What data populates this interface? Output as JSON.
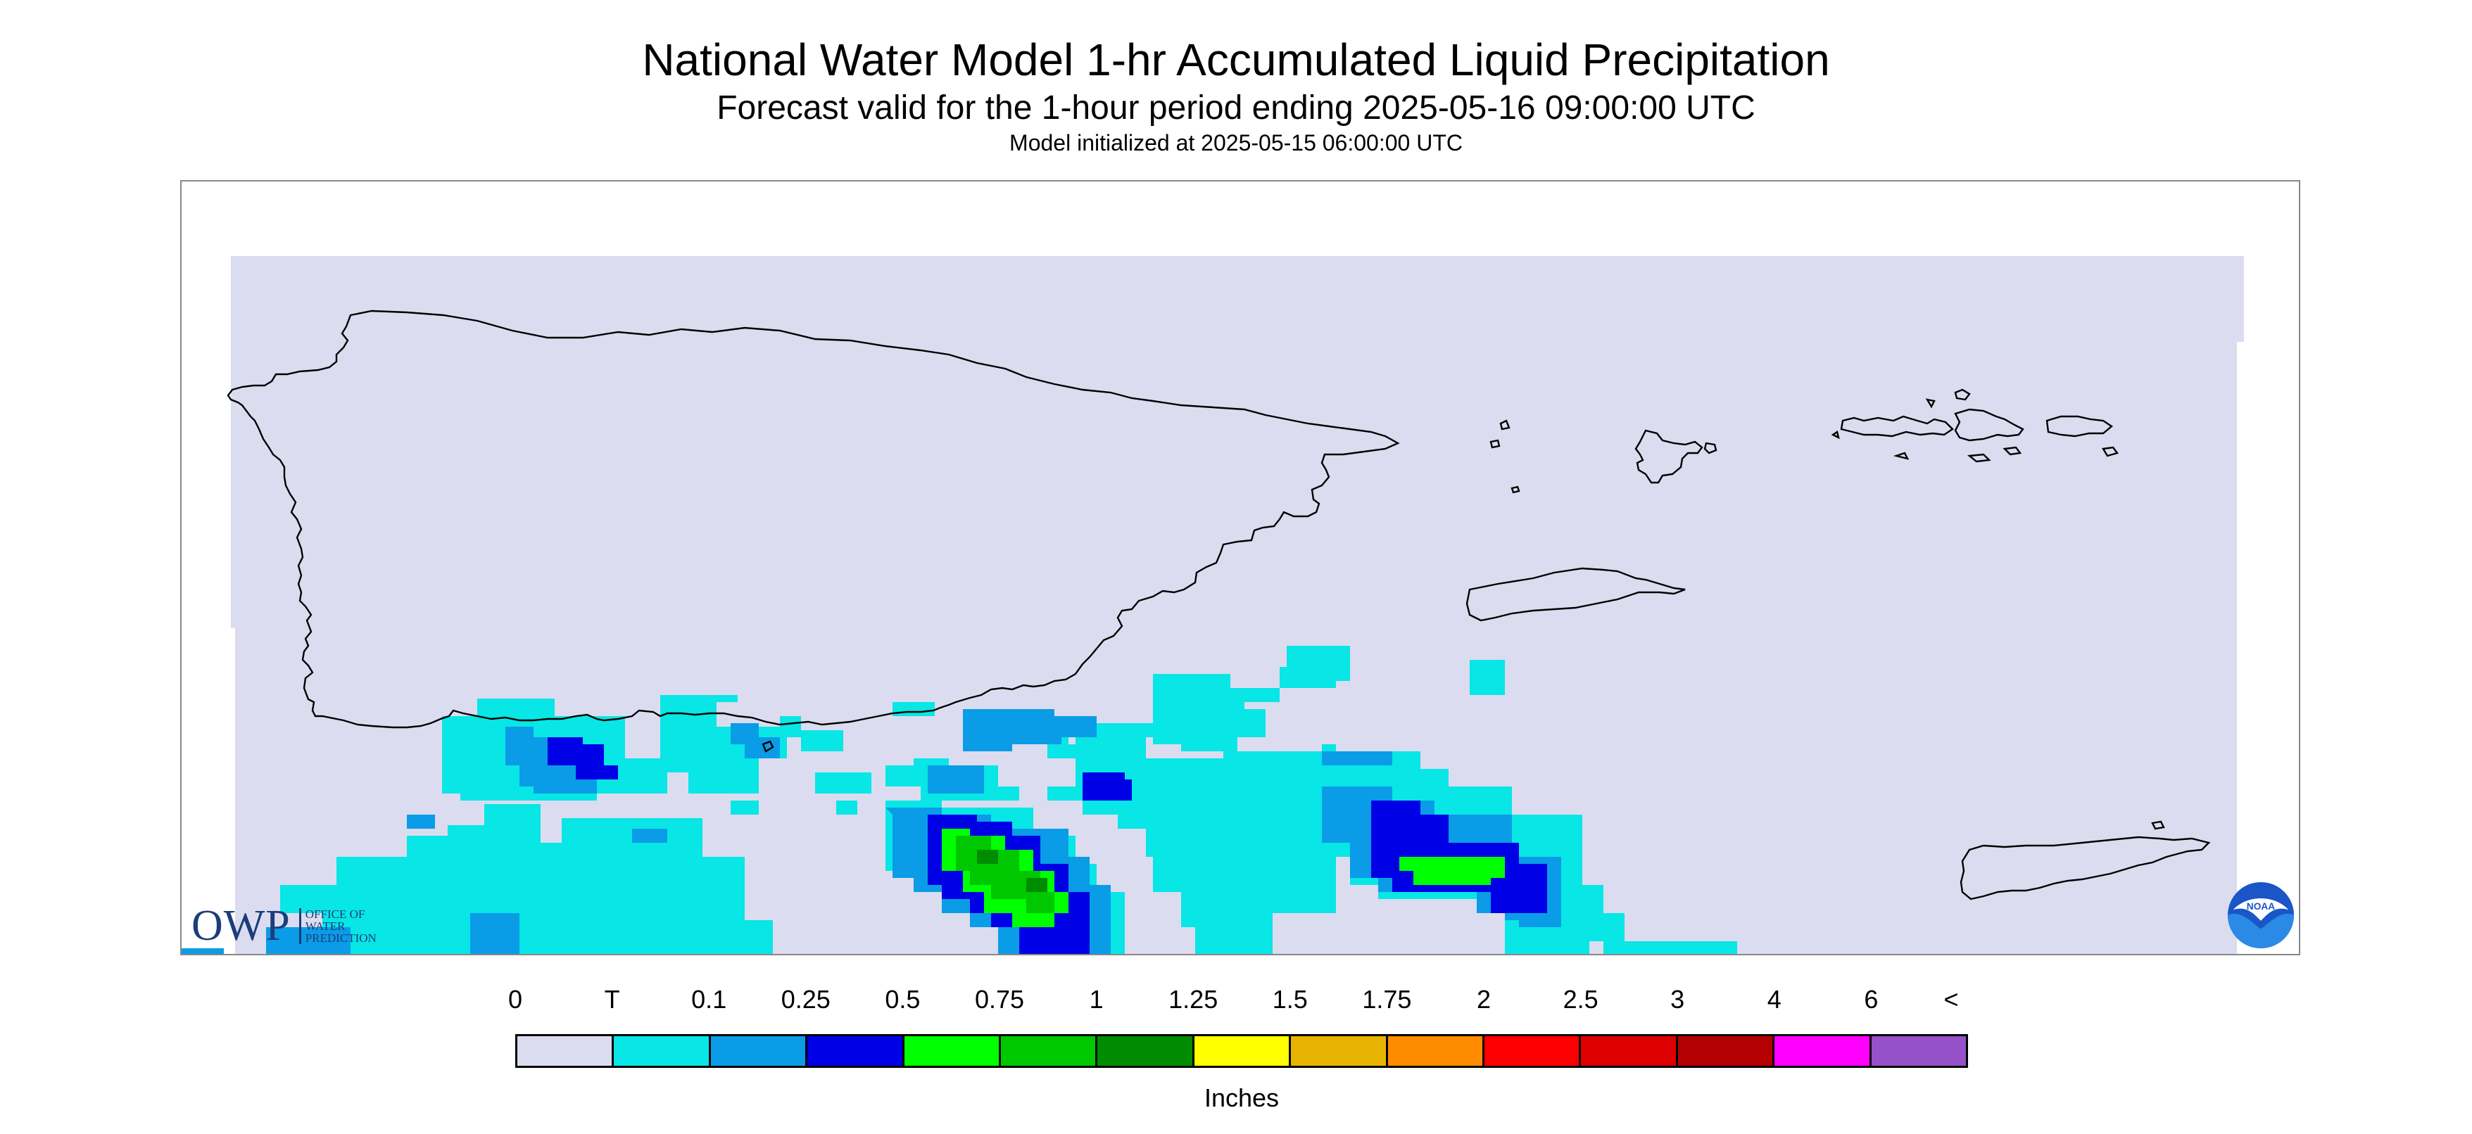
{
  "header": {
    "title": "National Water Model 1-hr Accumulated Liquid Precipitation",
    "subtitle": "Forecast valid for the 1-hour period ending 2025-05-16 09:00:00 UTC",
    "init_line": "Model initialized at 2025-05-15 06:00:00 UTC"
  },
  "owp_logo": {
    "letters": "OWP",
    "text_lines": [
      "Office of",
      "Water",
      "Prediction"
    ]
  },
  "noaa_logo": {
    "text": "NOAA"
  },
  "legend": {
    "units": "Inches",
    "labels": [
      "0",
      "T",
      "0.1",
      "0.25",
      "0.5",
      "0.75",
      "1",
      "1.25",
      "1.5",
      "1.75",
      "2",
      "2.5",
      "3",
      "4",
      "6",
      "<"
    ],
    "colors": [
      "#dcdcf0",
      "#08e6e6",
      "#0a9ce6",
      "#0000e6",
      "#00ff00",
      "#00c800",
      "#008c00",
      "#ffff00",
      "#e6b400",
      "#ff8c00",
      "#ff0000",
      "#dc0000",
      "#b40000",
      "#ff00ff",
      "#9650c8"
    ]
  },
  "map_colors": {
    "domain_fill": "#dcdcf0",
    "trace": "#08e6e6",
    "p0_1": "#0a9ce6",
    "p0_25": "#0000e6",
    "p0_5": "#00ff00",
    "p0_75": "#00c800",
    "p1": "#008c00",
    "coastline": "#000000"
  }
}
